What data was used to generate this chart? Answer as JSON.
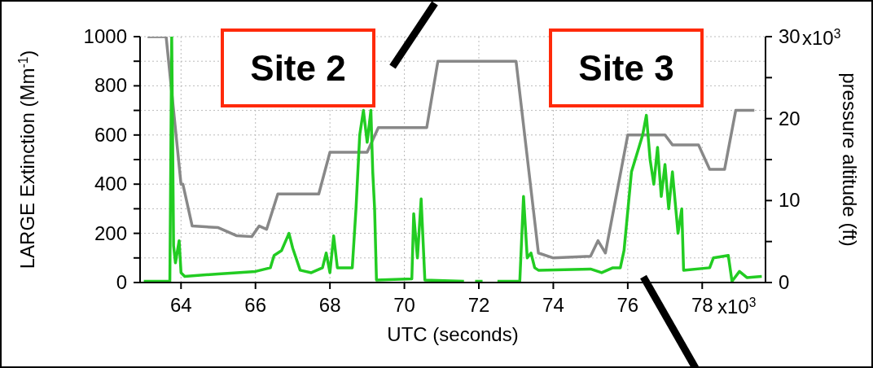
{
  "chart_data": {
    "type": "line",
    "xlabel": "UTC (seconds)",
    "ylabel": "LARGE Extinction (Mm$^{-1}$)",
    "y2label": "pressure altitude (ft)",
    "annotations": [
      "Site 2",
      "Site 3",
      "x10$^{3}$",
      "x10$^{3}$"
    ],
    "xlim": [
      62.9,
      79.7
    ],
    "xticks": [
      64,
      66,
      68,
      70,
      72,
      74,
      76,
      78
    ],
    "ylim": [
      0,
      1000
    ],
    "yticks": [
      0,
      {
        "value": 100,
        "label": null
      },
      200,
      {
        "value": 300,
        "label": null
      },
      400,
      {
        "value": 500,
        "label": null
      },
      600,
      {
        "value": 700,
        "label": null
      },
      800,
      {
        "value": 900,
        "label": null
      },
      1000
    ],
    "y2lim": [
      0,
      30
    ],
    "y2ticks": [
      0,
      {
        "value": 5,
        "label": null
      },
      10,
      {
        "value": 15,
        "label": null
      },
      20,
      {
        "value": 25,
        "label": null
      },
      30
    ],
    "grid": true,
    "series": [
      {
        "color": "#888888",
        "axis": "y2",
        "x": [
          63.1,
          63.6,
          64.0,
          64.05,
          64.3,
          65.0,
          65.5,
          65.9,
          66.1,
          66.3,
          66.6,
          67.7,
          68.0,
          69.0,
          69.3,
          70.6,
          70.9,
          73.0,
          73.6,
          74.0,
          75.0,
          75.2,
          75.4,
          76.0,
          77.0,
          77.2,
          77.9,
          78.2,
          78.6,
          78.9,
          79.4
        ],
        "values": [
          30,
          30,
          12,
          12,
          6.9,
          6.7,
          5.7,
          5.6,
          6.9,
          6.5,
          10.8,
          10.8,
          15.9,
          15.9,
          18.9,
          18.9,
          27,
          27,
          3.6,
          3.0,
          3.2,
          5.1,
          3.6,
          18,
          18,
          16.8,
          16.8,
          13.8,
          13.8,
          21,
          21
        ]
      },
      {
        "color": "#22cc22",
        "x": [
          63.0,
          63.7,
          63.75,
          63.8,
          63.85,
          63.95,
          64.0,
          64.1,
          65.0,
          66.0,
          66.4,
          66.5,
          66.7,
          66.9,
          67.0,
          67.2,
          67.5,
          67.8,
          67.9,
          68.0,
          68.1,
          68.2,
          68.6,
          68.7,
          68.8,
          68.9,
          69.0,
          69.1,
          69.15,
          69.2,
          69.25,
          70.2,
          70.25,
          70.35,
          70.45,
          70.55,
          71.6,
          71.7,
          71.9,
          72.1,
          72.2,
          72.5,
          73.1,
          73.2,
          73.3,
          73.4,
          73.5,
          73.6,
          75.0,
          75.3,
          75.6,
          75.8,
          75.9,
          76.1,
          76.3,
          76.4,
          76.5,
          76.6,
          76.7,
          76.8,
          76.9,
          77.0,
          77.1,
          77.2,
          77.35,
          77.45,
          77.5,
          78.2,
          78.3,
          78.7,
          78.8,
          79.0,
          79.2,
          79.6
        ],
        "values": [
          5,
          5,
          1000,
          150,
          80,
          170,
          40,
          25,
          35,
          45,
          60,
          110,
          130,
          200,
          140,
          50,
          40,
          60,
          120,
          40,
          190,
          60,
          60,
          300,
          600,
          700,
          570,
          700,
          450,
          300,
          10,
          15,
          280,
          100,
          340,
          10,
          5,
          null,
          5,
          5,
          null,
          5,
          5,
          350,
          100,
          120,
          60,
          50,
          55,
          40,
          60,
          60,
          130,
          450,
          550,
          600,
          680,
          500,
          400,
          550,
          350,
          480,
          300,
          450,
          200,
          300,
          50,
          60,
          100,
          110,
          5,
          45,
          20,
          25
        ]
      }
    ]
  }
}
